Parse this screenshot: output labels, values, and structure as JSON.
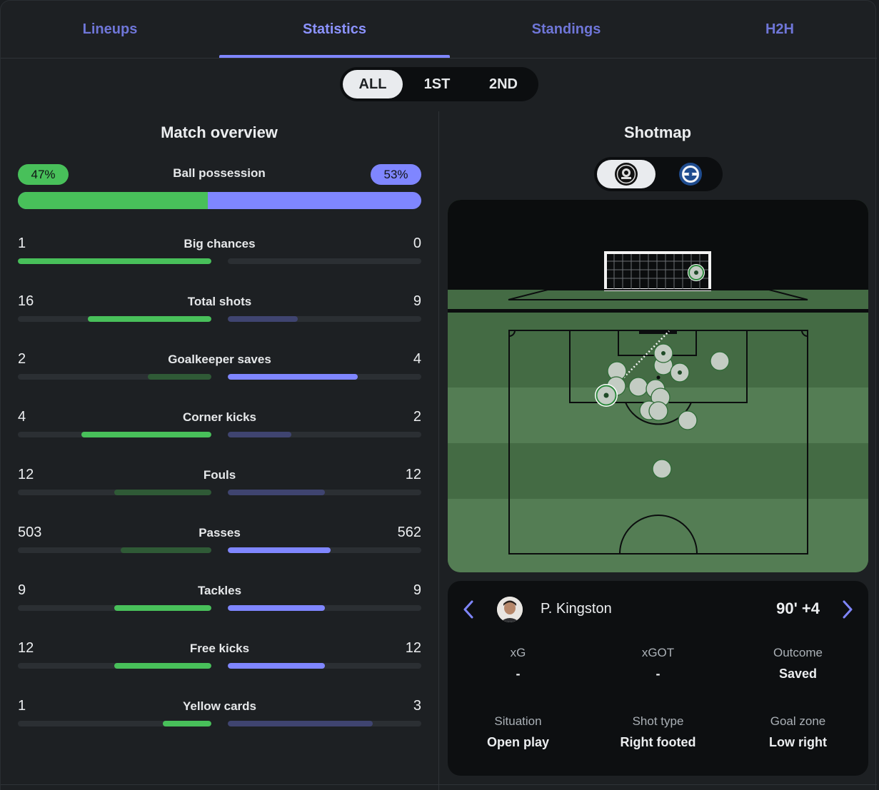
{
  "tabs": [
    "Lineups",
    "Statistics",
    "Standings",
    "H2H"
  ],
  "active_tab": "Statistics",
  "periods": [
    "ALL",
    "1ST",
    "2ND"
  ],
  "active_period": "ALL",
  "overview": {
    "title": "Match overview",
    "possession": {
      "label": "Ball possession",
      "home": "47%",
      "away": "53%",
      "home_fraction": 0.47
    },
    "stats": [
      {
        "label": "Big chances",
        "home": "1",
        "away": "0",
        "home_fill": 1.0,
        "away_fill": 0.0,
        "home_strong": true,
        "away_strong": false
      },
      {
        "label": "Total shots",
        "home": "16",
        "away": "9",
        "home_fill": 0.64,
        "away_fill": 0.36,
        "home_strong": true,
        "away_strong": false
      },
      {
        "label": "Goalkeeper saves",
        "home": "2",
        "away": "4",
        "home_fill": 0.33,
        "away_fill": 0.67,
        "home_strong": false,
        "away_strong": true
      },
      {
        "label": "Corner kicks",
        "home": "4",
        "away": "2",
        "home_fill": 0.67,
        "away_fill": 0.33,
        "home_strong": true,
        "away_strong": false
      },
      {
        "label": "Fouls",
        "home": "12",
        "away": "12",
        "home_fill": 0.5,
        "away_fill": 0.5,
        "home_strong": false,
        "away_strong": false
      },
      {
        "label": "Passes",
        "home": "503",
        "away": "562",
        "home_fill": 0.47,
        "away_fill": 0.53,
        "home_strong": false,
        "away_strong": true
      },
      {
        "label": "Tackles",
        "home": "9",
        "away": "9",
        "home_fill": 0.5,
        "away_fill": 0.5,
        "home_strong": true,
        "away_strong": true
      },
      {
        "label": "Free kicks",
        "home": "12",
        "away": "12",
        "home_fill": 0.5,
        "away_fill": 0.5,
        "home_strong": true,
        "away_strong": true
      },
      {
        "label": "Yellow cards",
        "home": "1",
        "away": "3",
        "home_fill": 0.25,
        "away_fill": 0.75,
        "home_strong": true,
        "away_strong": false
      }
    ]
  },
  "shotmap": {
    "title": "Shotmap",
    "selected_team": "home",
    "player": {
      "name": "P. Kingston",
      "time": "90' +4"
    },
    "details": [
      {
        "key": "xG",
        "value": "-"
      },
      {
        "key": "xGOT",
        "value": "-"
      },
      {
        "key": "Outcome",
        "value": "Saved"
      },
      {
        "key": "Situation",
        "value": "Open play"
      },
      {
        "key": "Shot type",
        "value": "Right footed"
      },
      {
        "key": "Goal zone",
        "value": "Low right"
      }
    ]
  },
  "colors": {
    "home": "#48c05a",
    "home_dim": "#2f5a36",
    "away": "#7f86ff",
    "away_dim": "#3f4470",
    "track": "#2b2f33",
    "tab": "#6f76d8"
  },
  "icons": {
    "prev": "chevron-left-icon",
    "next": "chevron-right-icon"
  }
}
